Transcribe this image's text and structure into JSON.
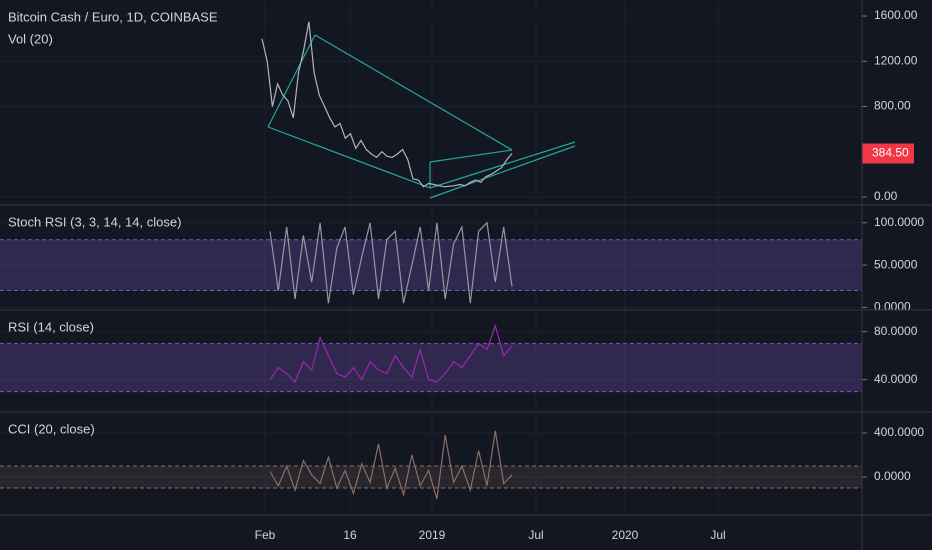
{
  "chart_data": [
    {
      "type": "line",
      "title": "Bitcoin Cash / Euro, 1D, COINBASE",
      "subtitle": "Vol (20)",
      "color": "#b2b5be",
      "ylim": [
        -71,
        1742
      ],
      "yticks": [
        {
          "value": 0,
          "label": "0.00"
        },
        {
          "value": 800,
          "label": "800.00"
        },
        {
          "value": 1200,
          "label": "1200.00"
        },
        {
          "value": 1600,
          "label": "1600.00"
        }
      ],
      "last_price": {
        "value": 384.5,
        "label": "384.50"
      },
      "values": [
        1400,
        1200,
        800,
        1000,
        900,
        850,
        700,
        1100,
        1300,
        1550,
        1100,
        900,
        800,
        700,
        620,
        650,
        520,
        560,
        430,
        500,
        420,
        380,
        350,
        400,
        360,
        350,
        380,
        420,
        330,
        160,
        150,
        90,
        120,
        110,
        100,
        90,
        95,
        100,
        110,
        100,
        130,
        150,
        130,
        180,
        200,
        230,
        260,
        330,
        384.5
      ],
      "xticks": [
        "Feb",
        "16",
        "2019",
        "Jul",
        "2020",
        "Jul"
      ]
    },
    {
      "type": "line",
      "title": "Stoch RSI (3, 3, 14, 14, close)",
      "color": "#9598a1",
      "ylim": [
        -3,
        121
      ],
      "yticks": [
        {
          "value": 0,
          "label": "0.0000"
        },
        {
          "value": 50,
          "label": "50.0000"
        },
        {
          "value": 100,
          "label": "100.0000"
        }
      ],
      "bands": [
        20,
        80
      ],
      "values": [
        90,
        20,
        95,
        10,
        85,
        30,
        100,
        5,
        70,
        95,
        15,
        60,
        100,
        10,
        80,
        90,
        5,
        50,
        95,
        20,
        100,
        10,
        75,
        95,
        5,
        90,
        100,
        30,
        95,
        25
      ]
    },
    {
      "type": "line",
      "title": "RSI (14, close)",
      "color": "#9c27b0",
      "ylim": [
        13,
        98
      ],
      "yticks": [
        {
          "value": 40,
          "label": "40.0000"
        },
        {
          "value": 80,
          "label": "80.0000"
        }
      ],
      "bands": [
        30,
        70
      ],
      "values": [
        40,
        50,
        45,
        38,
        55,
        48,
        75,
        60,
        45,
        42,
        50,
        40,
        55,
        48,
        45,
        60,
        50,
        42,
        65,
        40,
        38,
        45,
        55,
        50,
        60,
        70,
        65,
        85,
        60,
        68
      ]
    },
    {
      "type": "line",
      "title": "CCI (20, close)",
      "color": "#8d6e63",
      "ylim": [
        -345,
        591
      ],
      "yticks": [
        {
          "value": 0,
          "label": "0.0000"
        },
        {
          "value": 400,
          "label": "400.0000"
        }
      ],
      "bands": [
        -100,
        100
      ],
      "values": [
        50,
        -80,
        100,
        -120,
        150,
        20,
        -60,
        180,
        -100,
        60,
        -150,
        120,
        -50,
        300,
        -100,
        80,
        -160,
        200,
        -80,
        60,
        -200,
        380,
        -50,
        100,
        -120,
        240,
        -80,
        420,
        -60,
        20
      ]
    }
  ]
}
